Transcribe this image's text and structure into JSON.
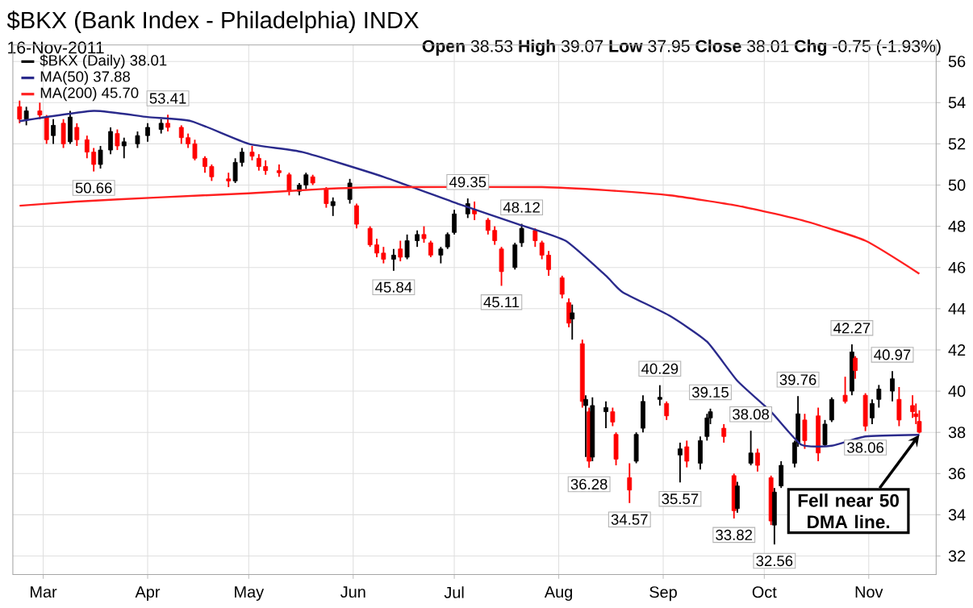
{
  "chart_data": {
    "type": "candlestick",
    "title": "$BKX (Bank Index - Philadelphia) INDX",
    "subtitle": "16-Nov-2011",
    "xlim": [
      "2011-02-20",
      "2011-11-21"
    ],
    "xticks": [
      {
        "value": "2011-03-01",
        "label": "Mar"
      },
      {
        "value": "2011-04-01",
        "label": "Apr"
      },
      {
        "value": "2011-05-01",
        "label": "May"
      },
      {
        "value": "2011-06-01",
        "label": "Jun"
      },
      {
        "value": "2011-07-01",
        "label": "Jul"
      },
      {
        "value": "2011-08-01",
        "label": "Aug"
      },
      {
        "value": "2011-09-01",
        "label": "Sep"
      },
      {
        "value": "2011-10-01",
        "label": "Oct"
      },
      {
        "value": "2011-11-01",
        "label": "Nov"
      }
    ],
    "ylim": [
      31.1,
      56.8
    ],
    "yticks": [
      32,
      34,
      36,
      38,
      40,
      42,
      44,
      46,
      48,
      50,
      52,
      54,
      56
    ],
    "grid": true,
    "legend": "top left",
    "series": [
      {
        "name": "$BKX (Daily) 38.01",
        "color": "#000000",
        "colors": [
          "#ff0000",
          "#000000",
          "#ff0000",
          "#ff0000",
          "#000000",
          "#ff0000",
          "#000000",
          "#ff0000",
          "#ff0000",
          "#ff0000",
          "#000000",
          "#000000",
          "#ff0000",
          "#000000",
          "#000000",
          "#000000",
          "#000000",
          "#ff0000",
          "#ff0000",
          "#ff0000",
          "#ff0000",
          "#ff0000",
          "#ff0000",
          "#ff0000",
          "#000000",
          "#000000",
          "#ff0000",
          "#ff0000",
          "#ff0000",
          "#ff0000",
          "#ff0000",
          "#000000",
          "#000000",
          "#ff0000",
          "#ff0000",
          "#000000",
          "#000000",
          "#ff0000",
          "#ff0000",
          "#ff0000",
          "#ff0000",
          "#000000",
          "#ff0000",
          "#000000",
          "#000000",
          "#ff0000",
          "#ff0000",
          "#000000",
          "#000000",
          "#000000",
          "#000000",
          "#ff0000",
          "#ff0000",
          "#ff0000",
          "#ff0000",
          "#000000",
          "#000000",
          "#ff0000",
          "#ff0000",
          "#ff0000",
          "#ff0000",
          "#ff0000",
          "#000000",
          "#ff0000",
          "#000000",
          "#ff0000",
          "#000000",
          "#000000",
          "#ff0000",
          "#ff0000",
          "#ff0000",
          "#000000",
          "#000000",
          "#000000",
          "#ff0000",
          "#000000",
          "#ff0000",
          "#000000",
          "#000000",
          "#000000",
          "#ff0000",
          "#ff0000",
          "#000000",
          "#000000",
          "#ff0000",
          "#ff0000",
          "#000000",
          "#000000",
          "#000000",
          "#000000",
          "#ff0000",
          "#ff0000",
          "#000000",
          "#000000",
          "#ff0000",
          "#000000",
          "#ff0000",
          "#ff0000",
          "#000000",
          "#000000",
          "#000000",
          "#ff0000",
          "#ff0000",
          "#ff0000",
          "#ff0000"
        ],
        "x": [
          "2011-02-22",
          "2011-02-24",
          "2011-02-28",
          "2011-03-02",
          "2011-03-04",
          "2011-03-07",
          "2011-03-09",
          "2011-03-11",
          "2011-03-14",
          "2011-03-16",
          "2011-03-18",
          "2011-03-21",
          "2011-03-23",
          "2011-03-25",
          "2011-03-29",
          "2011-04-01",
          "2011-04-05",
          "2011-04-07",
          "2011-04-11",
          "2011-04-13",
          "2011-04-15",
          "2011-04-18",
          "2011-04-20",
          "2011-04-25",
          "2011-04-27",
          "2011-04-29",
          "2011-05-02",
          "2011-05-04",
          "2011-05-06",
          "2011-05-10",
          "2011-05-13",
          "2011-05-16",
          "2011-05-18",
          "2011-05-20",
          "2011-05-24",
          "2011-05-26",
          "2011-05-31",
          "2011-06-02",
          "2011-06-06",
          "2011-06-08",
          "2011-06-10",
          "2011-06-13",
          "2011-06-15",
          "2011-06-17",
          "2011-06-20",
          "2011-06-22",
          "2011-06-24",
          "2011-06-27",
          "2011-06-29",
          "2011-07-01",
          "2011-07-05",
          "2011-07-07",
          "2011-07-11",
          "2011-07-13",
          "2011-07-15",
          "2011-07-19",
          "2011-07-21",
          "2011-07-25",
          "2011-07-27",
          "2011-07-29",
          "2011-08-02",
          "2011-08-04",
          "2011-08-05",
          "2011-08-08",
          "2011-08-09",
          "2011-08-10",
          "2011-08-11",
          "2011-08-15",
          "2011-08-17",
          "2011-08-18",
          "2011-08-22",
          "2011-08-24",
          "2011-08-26",
          "2011-08-31",
          "2011-09-02",
          "2011-09-06",
          "2011-09-08",
          "2011-09-12",
          "2011-09-14",
          "2011-09-15",
          "2011-09-19",
          "2011-09-22",
          "2011-09-23",
          "2011-09-27",
          "2011-09-29",
          "2011-10-03",
          "2011-10-04",
          "2011-10-06",
          "2011-10-10",
          "2011-10-11",
          "2011-10-13",
          "2011-10-17",
          "2011-10-19",
          "2011-10-21",
          "2011-10-25",
          "2011-10-27",
          "2011-10-28",
          "2011-10-31",
          "2011-11-02",
          "2011-11-04",
          "2011-11-08",
          "2011-11-10",
          "2011-11-14",
          "2011-11-15",
          "2011-11-16"
        ],
        "ohlc": [
          [
            53.8,
            54.1,
            53.0,
            53.2
          ],
          [
            53.2,
            53.8,
            52.9,
            53.6
          ],
          [
            53.6,
            54.0,
            53.2,
            53.4
          ],
          [
            53.3,
            53.4,
            52.0,
            52.2
          ],
          [
            52.4,
            53.2,
            52.0,
            52.9
          ],
          [
            53.0,
            53.2,
            51.8,
            52.0
          ],
          [
            52.1,
            53.6,
            52.0,
            53.3
          ],
          [
            52.8,
            53.0,
            51.9,
            52.2
          ],
          [
            52.2,
            52.4,
            51.3,
            51.6
          ],
          [
            51.6,
            51.8,
            50.66,
            51.0
          ],
          [
            51.0,
            51.9,
            50.8,
            51.7
          ],
          [
            51.7,
            52.8,
            51.5,
            52.6
          ],
          [
            52.5,
            52.7,
            51.7,
            51.9
          ],
          [
            51.9,
            52.3,
            51.3,
            52.1
          ],
          [
            52.0,
            52.6,
            51.8,
            52.4
          ],
          [
            52.4,
            53.0,
            52.1,
            52.8
          ],
          [
            52.7,
            53.2,
            52.5,
            53.0
          ],
          [
            53.0,
            53.41,
            52.6,
            52.8
          ],
          [
            52.8,
            52.9,
            52.0,
            52.3
          ],
          [
            52.3,
            52.5,
            51.8,
            52.0
          ],
          [
            52.0,
            52.2,
            51.2,
            51.3
          ],
          [
            51.3,
            51.4,
            50.6,
            50.9
          ],
          [
            50.9,
            51.0,
            50.2,
            50.4
          ],
          [
            50.3,
            50.6,
            49.9,
            50.2
          ],
          [
            50.2,
            51.3,
            50.1,
            51.1
          ],
          [
            51.1,
            51.8,
            50.9,
            51.6
          ],
          [
            51.6,
            51.9,
            51.2,
            51.4
          ],
          [
            51.3,
            51.5,
            50.7,
            50.9
          ],
          [
            50.9,
            51.2,
            50.5,
            50.7
          ],
          [
            50.7,
            51.0,
            50.4,
            50.6
          ],
          [
            50.5,
            50.6,
            49.5,
            49.7
          ],
          [
            49.7,
            50.1,
            49.5,
            50.0
          ],
          [
            50.0,
            50.6,
            49.8,
            50.5
          ],
          [
            50.4,
            50.5,
            50.0,
            50.1
          ],
          [
            49.8,
            49.9,
            48.9,
            49.1
          ],
          [
            49.0,
            49.4,
            48.5,
            49.2
          ],
          [
            49.3,
            50.3,
            49.1,
            50.1
          ],
          [
            49.0,
            49.1,
            47.9,
            48.1
          ],
          [
            47.9,
            48.0,
            47.0,
            47.1
          ],
          [
            47.1,
            47.4,
            46.5,
            46.7
          ],
          [
            46.7,
            47.0,
            46.2,
            46.4
          ],
          [
            46.4,
            46.9,
            45.84,
            46.6
          ],
          [
            46.9,
            47.3,
            46.3,
            46.5
          ],
          [
            46.5,
            47.6,
            46.4,
            47.3
          ],
          [
            47.3,
            47.8,
            47.0,
            47.6
          ],
          [
            47.6,
            48.0,
            47.2,
            47.4
          ],
          [
            47.2,
            47.3,
            46.5,
            46.6
          ],
          [
            46.6,
            47.0,
            46.2,
            46.9
          ],
          [
            47.0,
            47.7,
            46.9,
            47.6
          ],
          [
            47.7,
            48.8,
            47.6,
            48.6
          ],
          [
            48.6,
            49.35,
            48.4,
            49.1
          ],
          [
            48.8,
            49.2,
            48.3,
            48.6
          ],
          [
            48.3,
            48.4,
            47.6,
            47.8
          ],
          [
            47.8,
            48.0,
            47.1,
            47.3
          ],
          [
            46.9,
            47.0,
            45.11,
            45.8
          ],
          [
            46.0,
            47.2,
            45.9,
            47.1
          ],
          [
            47.2,
            48.12,
            47.0,
            47.9
          ],
          [
            47.8,
            47.9,
            47.0,
            47.3
          ],
          [
            47.2,
            47.3,
            46.4,
            46.6
          ],
          [
            46.6,
            46.8,
            45.6,
            45.9
          ],
          [
            45.5,
            45.6,
            44.5,
            44.7
          ],
          [
            44.3,
            44.5,
            43.1,
            43.3
          ],
          [
            43.5,
            44.2,
            42.5,
            43.8
          ],
          [
            42.3,
            42.5,
            39.2,
            39.5
          ],
          [
            39.3,
            39.8,
            36.8,
            39.6
          ],
          [
            39.0,
            39.2,
            36.28,
            36.6
          ],
          [
            36.8,
            39.7,
            36.6,
            39.3
          ],
          [
            39.0,
            39.5,
            38.2,
            39.2
          ],
          [
            39.0,
            39.2,
            38.3,
            38.5
          ],
          [
            37.9,
            38.0,
            36.4,
            36.7
          ],
          [
            35.8,
            36.5,
            34.57,
            35.2
          ],
          [
            36.6,
            38.0,
            36.5,
            37.9
          ],
          [
            38.2,
            39.8,
            38.0,
            39.5
          ],
          [
            39.6,
            40.29,
            39.3,
            39.7
          ],
          [
            39.4,
            39.5,
            38.6,
            38.8
          ],
          [
            36.9,
            37.5,
            35.57,
            37.2
          ],
          [
            37.3,
            37.6,
            36.3,
            36.6
          ],
          [
            36.5,
            37.8,
            36.2,
            37.6
          ],
          [
            37.8,
            38.9,
            37.6,
            38.7
          ],
          [
            38.7,
            39.15,
            38.4,
            39.0
          ],
          [
            38.2,
            38.4,
            37.5,
            37.8
          ],
          [
            35.9,
            36.0,
            33.82,
            34.2
          ],
          [
            34.3,
            35.6,
            34.1,
            35.4
          ],
          [
            36.5,
            38.08,
            36.4,
            37.0
          ],
          [
            37.0,
            37.2,
            36.1,
            36.4
          ],
          [
            35.8,
            35.9,
            33.5,
            33.7
          ],
          [
            33.5,
            35.3,
            32.56,
            35.1
          ],
          [
            35.4,
            36.6,
            35.3,
            36.4
          ],
          [
            36.5,
            37.6,
            36.3,
            37.5
          ],
          [
            37.5,
            39.76,
            37.3,
            38.9
          ],
          [
            38.6,
            38.9,
            37.2,
            37.6
          ],
          [
            38.8,
            39.2,
            36.6,
            37.0
          ],
          [
            37.4,
            38.6,
            37.3,
            38.4
          ],
          [
            38.6,
            39.7,
            38.5,
            39.6
          ],
          [
            39.8,
            40.7,
            39.4,
            39.5
          ],
          [
            40.0,
            42.27,
            39.8,
            41.9
          ],
          [
            41.6,
            41.7,
            40.6,
            41.0
          ],
          [
            39.8,
            39.9,
            38.06,
            38.3
          ],
          [
            38.7,
            39.6,
            38.4,
            39.4
          ],
          [
            39.6,
            40.3,
            39.2,
            40.1
          ],
          [
            40.0,
            40.97,
            39.5,
            40.6
          ],
          [
            39.6,
            40.2,
            38.3,
            38.6
          ],
          [
            39.3,
            39.8,
            38.7,
            39.0
          ],
          [
            38.9,
            39.4,
            38.4,
            38.76
          ],
          [
            38.53,
            39.07,
            37.95,
            38.01
          ]
        ]
      },
      {
        "name": "MA(50) 37.88",
        "type": "line",
        "color": "#2a2a8c",
        "x": [
          "2011-02-22",
          "2011-03-16",
          "2011-04-01",
          "2011-04-14",
          "2011-05-01",
          "2011-05-17",
          "2011-06-10",
          "2011-07-02",
          "2011-07-20",
          "2011-08-03",
          "2011-08-15",
          "2011-08-20",
          "2011-09-03",
          "2011-09-14",
          "2011-09-23",
          "2011-10-03",
          "2011-10-12",
          "2011-10-21",
          "2011-10-31",
          "2011-11-16"
        ],
        "values": [
          53.1,
          53.6,
          53.3,
          53.1,
          52.0,
          51.6,
          50.4,
          49.1,
          48.1,
          47.3,
          45.6,
          44.8,
          43.65,
          42.4,
          40.5,
          39.0,
          37.4,
          37.35,
          37.8,
          37.88
        ]
      },
      {
        "name": "MA(200) 45.70",
        "type": "line",
        "color": "#ff2020",
        "x": [
          "2011-02-22",
          "2011-03-11",
          "2011-04-04",
          "2011-05-01",
          "2011-05-22",
          "2011-06-10",
          "2011-07-27",
          "2011-08-15",
          "2011-09-03",
          "2011-09-23",
          "2011-10-12",
          "2011-10-31",
          "2011-11-16"
        ],
        "values": [
          49.0,
          49.2,
          49.4,
          49.6,
          49.8,
          49.9,
          49.9,
          49.75,
          49.5,
          49.0,
          48.3,
          47.3,
          45.7
        ]
      }
    ],
    "annotations": [
      "**Open** 38.53  **High** 39.07  **Low** 37.95  **Close** 38.01  **Chg** -0.75 (-1.93%)",
      {
        "text": "53.41",
        "x": "2011-04-07",
        "y": 53.41
      },
      {
        "text": "50.66",
        "x": "2011-03-16",
        "y": 50.66
      },
      {
        "text": "49.35",
        "x": "2011-07-05",
        "y": 49.35
      },
      {
        "text": "45.84",
        "x": "2011-06-13",
        "y": 45.84
      },
      {
        "text": "48.12",
        "x": "2011-07-21",
        "y": 48.12
      },
      {
        "text": "45.11",
        "x": "2011-07-15",
        "y": 45.11
      },
      {
        "text": "36.28",
        "x": "2011-08-10",
        "y": 36.28
      },
      {
        "text": "34.57",
        "x": "2011-08-22",
        "y": 34.57
      },
      {
        "text": "40.29",
        "x": "2011-08-31",
        "y": 40.29
      },
      {
        "text": "35.57",
        "x": "2011-09-06",
        "y": 35.57
      },
      {
        "text": "39.15",
        "x": "2011-09-15",
        "y": 39.15
      },
      {
        "text": "33.82",
        "x": "2011-09-22",
        "y": 33.82
      },
      {
        "text": "38.08",
        "x": "2011-09-27",
        "y": 38.08
      },
      {
        "text": "32.56",
        "x": "2011-10-04",
        "y": 32.56
      },
      {
        "text": "39.76",
        "x": "2011-10-11",
        "y": 39.76
      },
      {
        "text": "42.27",
        "x": "2011-10-27",
        "y": 42.27
      },
      {
        "text": "38.06",
        "x": "2011-10-31",
        "y": 38.06
      },
      {
        "text": "40.97",
        "x": "2011-11-08",
        "y": 40.97
      },
      {
        "text": "Fell near 50 DMA line.",
        "x": "2011-11-16",
        "y": 37.88
      }
    ]
  }
}
